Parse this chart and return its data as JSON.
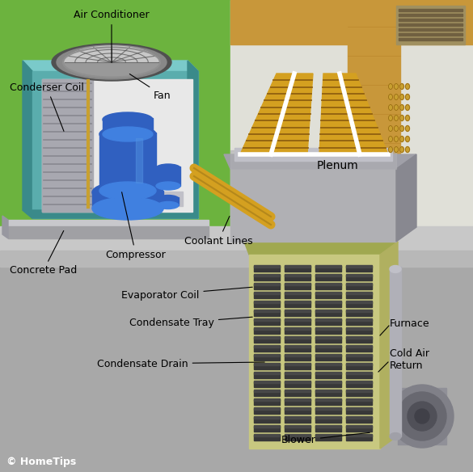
{
  "bg_color": "#6cb33e",
  "floor_color": "#a0a0a0",
  "floor_dark": "#888888",
  "wall_color": "#d4c87a",
  "wall_wood": "#c8973a",
  "ac_unit_body": "#5aadad",
  "ac_unit_body_dark": "#3a8a8a",
  "ac_unit_inner": "#e8e8e8",
  "ac_unit_top": "#7acaca",
  "fan_gray": "#888888",
  "fan_dark": "#555555",
  "compressor_blue": "#3060c0",
  "compressor_dark": "#1a3a8a",
  "compressor_mid": "#4080e0",
  "coil_fins": "#a0a0a8",
  "coil_tubes": "#c8a030",
  "concrete_light": "#c8c8cc",
  "concrete_dark": "#a0a0a4",
  "furnace_body": "#c8c880",
  "furnace_dark": "#a0a850",
  "furnace_side": "#b0b060",
  "evap_coil_gold": "#d4a020",
  "evap_coil_light": "#e0b840",
  "plenum_gray": "#b0b0b4",
  "plenum_dark": "#888890",
  "coolant_line": "#d4a020",
  "pipe_gray": "#b0b0b8",
  "blower_gray": "#909090",
  "vent_dark": "#606060",
  "text_color": "#000000",
  "line_color": "#000000",
  "copyright_color": "#ffffff",
  "labels": {
    "air_conditioner": "Air Conditioner",
    "condenser_coil": "Conderser Coil",
    "fan": "Fan",
    "compressor": "Compressor",
    "concrete_pad": "Concrete Pad",
    "coolant_lines": "Coolant Lines",
    "evaporator_coil": "Evaporator Coil",
    "condensate_tray": "Condensate Tray",
    "condensate_drain": "Condensate Drain",
    "plenum": "Plenum",
    "furnace": "Furnace",
    "cold_air_return": "Cold Air\nReturn",
    "blower": "Blower",
    "copyright": "© HomeTips"
  }
}
